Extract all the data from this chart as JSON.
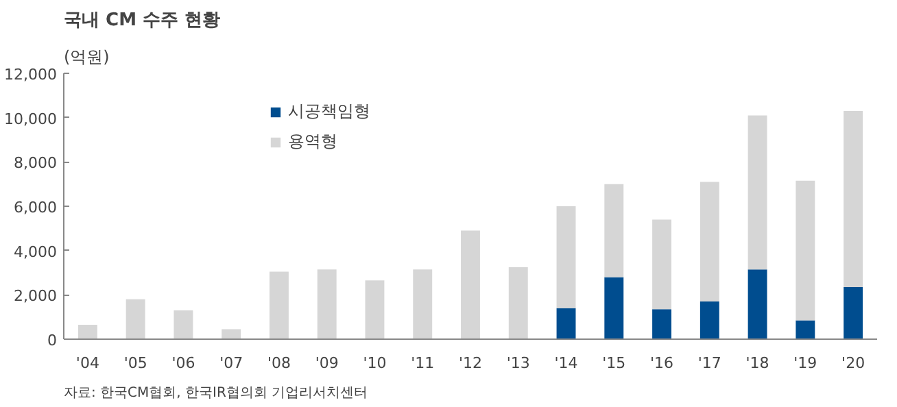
{
  "chart_data": {
    "type": "bar",
    "title": "국내 CM 수주 현황",
    "ylabel": "(억원)",
    "stacked": true,
    "legend": "top",
    "categories": [
      "'04",
      "'05",
      "'06",
      "'07",
      "'08",
      "'09",
      "'10",
      "'11",
      "'12",
      "'13",
      "'14",
      "'15",
      "'16",
      "'17",
      "'18",
      "'19",
      "'20"
    ],
    "series": [
      {
        "name": "시공책임형",
        "color": "#004d8f",
        "values": [
          0,
          0,
          0,
          0,
          0,
          0,
          0,
          0,
          0,
          0,
          1400,
          2800,
          1350,
          1700,
          3150,
          850,
          2350
        ]
      },
      {
        "name": "용역형",
        "color": "#d6d6d6",
        "values": [
          650,
          1800,
          1300,
          450,
          3050,
          3150,
          2650,
          3150,
          4900,
          3250,
          4600,
          4200,
          4050,
          5400,
          6950,
          6300,
          7950
        ]
      }
    ],
    "ylim": [
      0,
      12000
    ],
    "yticks": [
      {
        "value": 0,
        "label": "0"
      },
      {
        "value": 2000,
        "label": "2,000"
      },
      {
        "value": 4000,
        "label": "4,000"
      },
      {
        "value": 6000,
        "label": "6,000"
      },
      {
        "value": 8000,
        "label": "8,000"
      },
      {
        "value": 10000,
        "label": "10,000"
      },
      {
        "value": 12000,
        "label": "12,000"
      }
    ],
    "annotations": [
      "자료: 한국CM협회, 한국IR협의회 기업리서치센터"
    ]
  }
}
